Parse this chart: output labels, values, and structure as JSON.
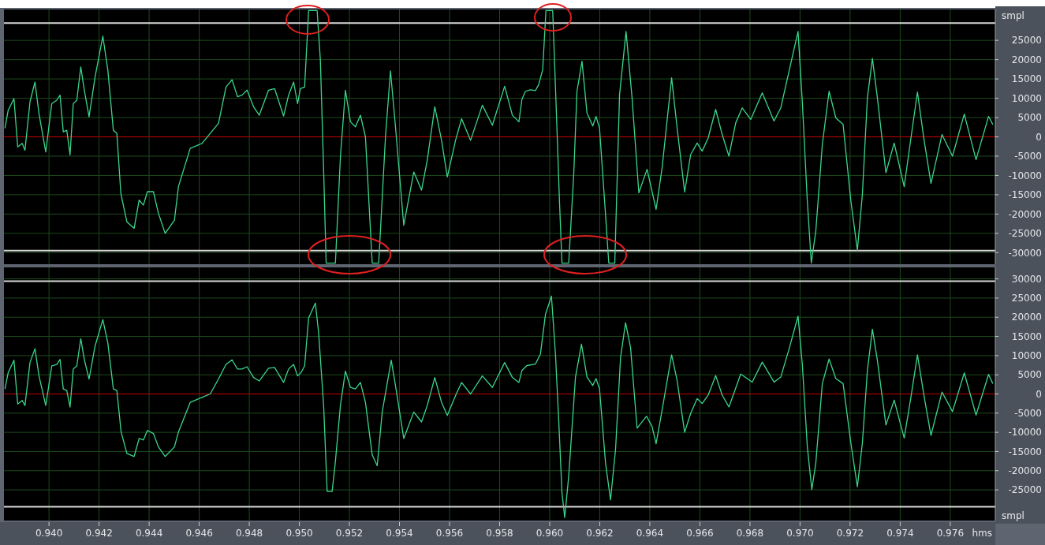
{
  "chart_data": [
    {
      "type": "line",
      "ylabel": "smpl",
      "tick_labels": "y",
      "grid": true,
      "xlim": [
        0.9382,
        0.9778
      ],
      "ylim": [
        -33000,
        33000
      ],
      "xticks": [
        {
          "value": 0.94,
          "label": null
        },
        {
          "value": 0.942,
          "label": null
        },
        {
          "value": 0.944,
          "label": null
        },
        {
          "value": 0.946,
          "label": null
        },
        {
          "value": 0.948,
          "label": null
        },
        {
          "value": 0.95,
          "label": null
        },
        {
          "value": 0.952,
          "label": null
        },
        {
          "value": 0.954,
          "label": null
        },
        {
          "value": 0.956,
          "label": null
        },
        {
          "value": 0.958,
          "label": null
        },
        {
          "value": 0.96,
          "label": null
        },
        {
          "value": 0.962,
          "label": null
        },
        {
          "value": 0.964,
          "label": null
        },
        {
          "value": 0.966,
          "label": null
        },
        {
          "value": 0.968,
          "label": null
        },
        {
          "value": 0.97,
          "label": null
        },
        {
          "value": 0.972,
          "label": null
        },
        {
          "value": 0.974,
          "label": null
        },
        {
          "value": 0.976,
          "label": null
        }
      ],
      "yticks": [
        25000,
        20000,
        15000,
        10000,
        5000,
        0,
        -5000,
        -10000,
        -15000,
        -20000,
        -25000,
        -30000
      ],
      "ref_lines": [
        {
          "axis": "y",
          "value": 0,
          "color": "#c00000"
        },
        {
          "axis": "y",
          "value": 29500,
          "color": "#d8d8d8"
        },
        {
          "axis": "y",
          "value": -29500,
          "color": "#d8d8d8"
        }
      ],
      "series": [
        {
          "color": "#3ad68c",
          "x": [
            0.93824,
            0.93837,
            0.9386,
            0.93875,
            0.93893,
            0.93904,
            0.93924,
            0.93944,
            0.9396,
            0.93987,
            0.94011,
            0.94031,
            0.94044,
            0.94057,
            0.94071,
            0.94084,
            0.94097,
            0.94111,
            0.94127,
            0.94141,
            0.9416,
            0.94184,
            0.94215,
            0.94235,
            0.94257,
            0.94271,
            0.94287,
            0.94311,
            0.9434,
            0.9436,
            0.94377,
            0.94393,
            0.94417,
            0.94437,
            0.94464,
            0.94501,
            0.94517,
            0.94564,
            0.94611,
            0.94644,
            0.94677,
            0.94707,
            0.94731,
            0.94753,
            0.94771,
            0.94791,
            0.94817,
            0.9484,
            0.94877,
            0.94901,
            0.94937,
            0.94957,
            0.94977,
            0.94993,
            0.95004,
            0.95021,
            0.95037,
            0.95044,
            0.95071,
            0.95084,
            0.95097,
            0.95107,
            0.95144,
            0.95164,
            0.95184,
            0.95204,
            0.95224,
            0.95244,
            0.95264,
            0.95291,
            0.95317,
            0.95344,
            0.95364,
            0.95384,
            0.95417,
            0.95457,
            0.95488,
            0.95511,
            0.95541,
            0.95568,
            0.95591,
            0.95624,
            0.95648,
            0.95684,
            0.95731,
            0.95771,
            0.9582,
            0.95851,
            0.95877,
            0.95889,
            0.95903,
            0.95923,
            0.95943,
            0.95956,
            0.95972,
            0.95985,
            0.95993,
            0.96012,
            0.96027,
            0.96039,
            0.96049,
            0.96076,
            0.96096,
            0.96109,
            0.96129,
            0.96149,
            0.96172,
            0.96185,
            0.96199,
            0.96223,
            0.96236,
            0.9626,
            0.96279,
            0.96305,
            0.96329,
            0.96356,
            0.96389,
            0.96425,
            0.96449,
            0.96487,
            0.96509,
            0.96539,
            0.96563,
            0.96589,
            0.96609,
            0.96633,
            0.96663,
            0.96689,
            0.96716,
            0.96743,
            0.96769,
            0.96803,
            0.96849,
            0.96896,
            0.96923,
            0.96956,
            0.96992,
            0.97009,
            0.97029,
            0.97045,
            0.97063,
            0.97089,
            0.97116,
            0.97143,
            0.97172,
            0.97203,
            0.97229,
            0.97249,
            0.97269,
            0.97289,
            0.97309,
            0.97343,
            0.97376,
            0.97416,
            0.97443,
            0.97469,
            0.97496,
            0.97523,
            0.97567,
            0.97609,
            0.97656,
            0.97703,
            0.97753,
            0.9777
          ],
          "values": [
            2200,
            6900,
            9900,
            -2600,
            -1700,
            -3500,
            9100,
            14200,
            6000,
            -3900,
            8600,
            9500,
            10800,
            1300,
            1700,
            -4700,
            8600,
            9500,
            18100,
            12100,
            5200,
            15500,
            26100,
            17300,
            1700,
            900,
            -14700,
            -22000,
            -23700,
            -16400,
            -17700,
            -14200,
            -14200,
            -19800,
            -25000,
            -21600,
            -12900,
            -3000,
            -1700,
            900,
            3500,
            12900,
            14800,
            10400,
            10800,
            12100,
            7800,
            5600,
            12100,
            12500,
            5400,
            10800,
            14200,
            8600,
            12500,
            12900,
            32700,
            32700,
            32700,
            19800,
            -8600,
            -32700,
            -32700,
            -5200,
            12100,
            3900,
            2600,
            5600,
            0,
            -32700,
            -32700,
            0,
            17100,
            2600,
            -22900,
            -9100,
            -13800,
            -6000,
            7800,
            -900,
            -10400,
            -900,
            4700,
            -900,
            8200,
            3000,
            13100,
            5600,
            3900,
            9700,
            11800,
            12200,
            12000,
            13500,
            17400,
            32700,
            32700,
            32700,
            5800,
            -16600,
            -32700,
            -32700,
            -9700,
            11800,
            19600,
            6200,
            2800,
            5300,
            2300,
            -20100,
            -32700,
            -32700,
            10900,
            27300,
            10100,
            -14500,
            -8400,
            -18800,
            -8000,
            15300,
            2300,
            -14300,
            -4600,
            -1600,
            -3700,
            -300,
            7100,
            600,
            -5000,
            3600,
            7500,
            4500,
            11400,
            4100,
            7500,
            17000,
            27300,
            9200,
            -16600,
            -32700,
            -24400,
            -2000,
            11800,
            4900,
            3200,
            -16600,
            -29400,
            -14900,
            10100,
            20300,
            10100,
            -9300,
            -1600,
            -12900,
            -300,
            11600,
            -1100,
            -12100,
            600,
            -5000,
            5900,
            -5900,
            5300,
            3200
          ]
        }
      ]
    },
    {
      "type": "line",
      "ylabel": "smpl",
      "xlabel": "hms",
      "grid": true,
      "xlim": [
        0.9382,
        0.9778
      ],
      "ylim": [
        -33000,
        33000
      ],
      "xticks": [
        {
          "value": 0.94,
          "label": "0.940"
        },
        {
          "value": 0.942,
          "label": "0.942"
        },
        {
          "value": 0.944,
          "label": "0.944"
        },
        {
          "value": 0.946,
          "label": "0.946"
        },
        {
          "value": 0.948,
          "label": "0.948"
        },
        {
          "value": 0.95,
          "label": "0.950"
        },
        {
          "value": 0.952,
          "label": "0.952"
        },
        {
          "value": 0.954,
          "label": "0.954"
        },
        {
          "value": 0.956,
          "label": "0.956"
        },
        {
          "value": 0.958,
          "label": "0.958"
        },
        {
          "value": 0.96,
          "label": "0.960"
        },
        {
          "value": 0.962,
          "label": "0.962"
        },
        {
          "value": 0.964,
          "label": "0.964"
        },
        {
          "value": 0.966,
          "label": "0.966"
        },
        {
          "value": 0.968,
          "label": "0.968"
        },
        {
          "value": 0.97,
          "label": "0.970"
        },
        {
          "value": 0.972,
          "label": "0.972"
        },
        {
          "value": 0.974,
          "label": "0.974"
        },
        {
          "value": 0.976,
          "label": "0.976"
        }
      ],
      "yticks": [
        30000,
        25000,
        20000,
        15000,
        10000,
        5000,
        0,
        -5000,
        -10000,
        -15000,
        -20000,
        -25000
      ],
      "ref_lines": [
        {
          "axis": "y",
          "value": 0,
          "color": "#c00000"
        },
        {
          "axis": "y",
          "value": 29400,
          "color": "#d8d8d8"
        },
        {
          "axis": "y",
          "value": -29400,
          "color": "#d8d8d8"
        }
      ],
      "series": [
        {
          "color": "#3ad68c",
          "x": [
            0.93824,
            0.93837,
            0.9386,
            0.93875,
            0.93893,
            0.93904,
            0.93924,
            0.93944,
            0.9396,
            0.93987,
            0.94011,
            0.94031,
            0.94044,
            0.94057,
            0.94071,
            0.94084,
            0.94097,
            0.94111,
            0.94127,
            0.94141,
            0.9416,
            0.94184,
            0.94215,
            0.94235,
            0.94257,
            0.94271,
            0.94288,
            0.94311,
            0.9434,
            0.9436,
            0.94377,
            0.94393,
            0.94417,
            0.94437,
            0.94464,
            0.94501,
            0.94517,
            0.94564,
            0.94611,
            0.94644,
            0.94677,
            0.94707,
            0.94731,
            0.94753,
            0.94771,
            0.94791,
            0.94817,
            0.9484,
            0.94877,
            0.94901,
            0.94937,
            0.94957,
            0.94977,
            0.94993,
            0.95007,
            0.95021,
            0.95037,
            0.95064,
            0.95077,
            0.95097,
            0.95111,
            0.95131,
            0.95144,
            0.95164,
            0.95184,
            0.95204,
            0.95224,
            0.95244,
            0.95264,
            0.95291,
            0.95311,
            0.95331,
            0.95367,
            0.95384,
            0.95417,
            0.95457,
            0.95488,
            0.95511,
            0.95541,
            0.95568,
            0.95591,
            0.95624,
            0.95648,
            0.95684,
            0.95731,
            0.95771,
            0.9582,
            0.95851,
            0.95877,
            0.95889,
            0.95909,
            0.95943,
            0.95963,
            0.95983,
            0.96007,
            0.96023,
            0.96036,
            0.96049,
            0.9606,
            0.96076,
            0.96103,
            0.96127,
            0.96149,
            0.96172,
            0.96185,
            0.96199,
            0.96223,
            0.96243,
            0.96263,
            0.96283,
            0.96303,
            0.96323,
            0.96349,
            0.96387,
            0.96409,
            0.96425,
            0.96449,
            0.96487,
            0.96509,
            0.96539,
            0.96563,
            0.96589,
            0.96609,
            0.96633,
            0.96663,
            0.96689,
            0.96716,
            0.96763,
            0.96809,
            0.96849,
            0.96896,
            0.96923,
            0.96956,
            0.96992,
            0.97009,
            0.97029,
            0.97047,
            0.97063,
            0.97089,
            0.97116,
            0.97143,
            0.97172,
            0.97203,
            0.97229,
            0.97249,
            0.97269,
            0.97289,
            0.97309,
            0.97343,
            0.97376,
            0.97416,
            0.97443,
            0.97469,
            0.97496,
            0.97523,
            0.97567,
            0.97609,
            0.97656,
            0.97703,
            0.97753,
            0.9777
          ],
          "values": [
            1300,
            5600,
            8800,
            -2600,
            -1700,
            -3000,
            8200,
            11800,
            4700,
            -3000,
            7300,
            7700,
            9000,
            1300,
            900,
            -3400,
            6500,
            7300,
            14400,
            9000,
            3900,
            12500,
            19400,
            13300,
            1300,
            900,
            -9900,
            -15500,
            -16300,
            -11600,
            -12000,
            -9500,
            -10300,
            -13800,
            -16300,
            -13800,
            -9900,
            -2200,
            -900,
            0,
            3900,
            7700,
            8900,
            6500,
            6500,
            7100,
            4300,
            3400,
            6700,
            6900,
            3000,
            6500,
            7700,
            4700,
            5600,
            7300,
            19800,
            23700,
            15900,
            -3000,
            -25400,
            -25400,
            -17600,
            -3000,
            6000,
            1700,
            1300,
            3000,
            -2200,
            -15900,
            -18700,
            -4700,
            8800,
            2200,
            -11600,
            -4700,
            -7300,
            -3000,
            4300,
            -2200,
            -5600,
            -400,
            3000,
            0,
            4700,
            1700,
            8200,
            4300,
            3000,
            6100,
            7400,
            7800,
            10400,
            20700,
            25500,
            10400,
            -6800,
            -25700,
            -32200,
            -21400,
            4400,
            13000,
            4400,
            2200,
            4000,
            1400,
            -18000,
            -27600,
            -14500,
            9500,
            18600,
            12100,
            -8900,
            -5800,
            -8500,
            -13000,
            -4200,
            10200,
            3500,
            -10000,
            -5100,
            -1200,
            -2500,
            -300,
            4800,
            -300,
            -3400,
            5200,
            3100,
            8300,
            3100,
            4400,
            11700,
            20300,
            7800,
            -13700,
            -24900,
            -18000,
            2700,
            9100,
            4000,
            2700,
            -12800,
            -24200,
            -12800,
            6100,
            16900,
            8700,
            -8100,
            -1600,
            -11500,
            -800,
            10200,
            -800,
            -10800,
            500,
            -4600,
            5500,
            -5500,
            5100,
            2700
          ]
        }
      ]
    }
  ]
}
